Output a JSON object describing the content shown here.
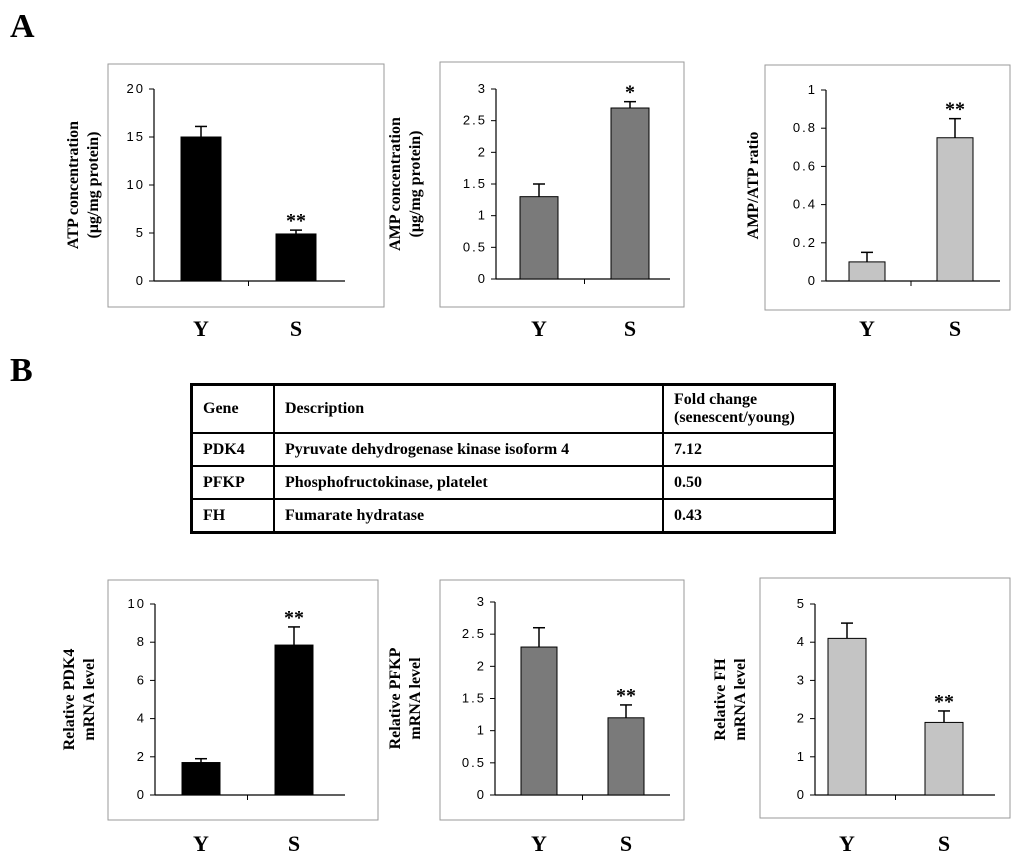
{
  "panels": {
    "a": "A",
    "b": "B"
  },
  "table": {
    "headers": [
      "Gene",
      "Description",
      "Fold change",
      "(senescent/young)"
    ],
    "rows": [
      [
        "PDK4",
        "Pyruvate dehydrogenase kinase isoform 4",
        "7.12"
      ],
      [
        "PFKP",
        "Phosphofructokinase, platelet",
        "0.50"
      ],
      [
        "FH",
        "Fumarate hydratase",
        "0.43"
      ]
    ]
  },
  "chart_data": [
    {
      "id": "atp",
      "type": "bar",
      "categories": [
        "Y",
        "S"
      ],
      "values": [
        15.0,
        4.9
      ],
      "errors": [
        1.1,
        0.4
      ],
      "annotations": [
        "",
        "**"
      ],
      "ylim": [
        0,
        20
      ],
      "yticks": [
        "0",
        "5",
        "10",
        "15",
        "20"
      ],
      "ylabel_lines": [
        "ATP concentration",
        "(μg/mg protein)"
      ],
      "color": "#000000"
    },
    {
      "id": "amp",
      "type": "bar",
      "categories": [
        "Y",
        "S"
      ],
      "values": [
        1.3,
        2.7
      ],
      "errors": [
        0.2,
        0.1
      ],
      "annotations": [
        "",
        "*"
      ],
      "ylim": [
        0,
        3
      ],
      "yticks": [
        "0",
        "0.5",
        "1",
        "1.5",
        "2",
        "2.5",
        "3"
      ],
      "ylabel_lines": [
        "AMP concentration",
        "(μg/mg protein)"
      ],
      "color": "#7a7a7a"
    },
    {
      "id": "ratio",
      "type": "bar",
      "categories": [
        "Y",
        "S"
      ],
      "values": [
        0.1,
        0.75
      ],
      "errors": [
        0.05,
        0.1
      ],
      "annotations": [
        "",
        "**"
      ],
      "ylim": [
        0,
        1
      ],
      "yticks": [
        "0",
        "0.2",
        "0.4",
        "0.6",
        "0.8",
        "1"
      ],
      "ylabel_lines": [
        "AMP/ATP ratio"
      ],
      "color": "#c4c4c4"
    },
    {
      "id": "pdk4",
      "type": "bar",
      "categories": [
        "Y",
        "S"
      ],
      "values": [
        1.7,
        7.85
      ],
      "errors": [
        0.2,
        0.95
      ],
      "annotations": [
        "",
        "**"
      ],
      "ylim": [
        0,
        10
      ],
      "yticks": [
        "0",
        "2",
        "4",
        "6",
        "8",
        "10"
      ],
      "ylabel_lines": [
        "Relative PDK4",
        "mRNA level"
      ],
      "color": "#000000"
    },
    {
      "id": "pfkp",
      "type": "bar",
      "categories": [
        "Y",
        "S"
      ],
      "values": [
        2.3,
        1.2
      ],
      "errors": [
        0.3,
        0.2
      ],
      "annotations": [
        "",
        "**"
      ],
      "ylim": [
        0,
        3
      ],
      "yticks": [
        "0",
        "0.5",
        "1",
        "1.5",
        "2",
        "2.5",
        "3"
      ],
      "ylabel_lines": [
        "Relative PFKP",
        "mRNA level"
      ],
      "color": "#7a7a7a"
    },
    {
      "id": "fh",
      "type": "bar",
      "categories": [
        "Y",
        "S"
      ],
      "values": [
        4.1,
        1.9
      ],
      "errors": [
        0.4,
        0.3
      ],
      "annotations": [
        "",
        "**"
      ],
      "ylim": [
        0,
        5
      ],
      "yticks": [
        "0",
        "1",
        "2",
        "3",
        "4",
        "5"
      ],
      "ylabel_lines": [
        "Relative FH",
        "mRNA level"
      ],
      "color": "#c4c4c4"
    }
  ]
}
